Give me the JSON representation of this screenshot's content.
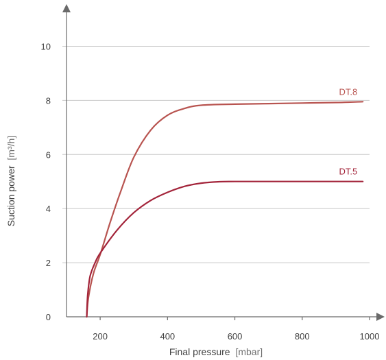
{
  "chart_data": {
    "type": "line",
    "title": "",
    "xlabel": {
      "name": "Final pressure",
      "unit": "[mbar]"
    },
    "ylabel": {
      "name": "Suction power",
      "unit": "[m³/h]"
    },
    "xlim": [
      100,
      1000
    ],
    "ylim": [
      0,
      11
    ],
    "x_ticks": [
      200,
      400,
      600,
      800,
      1000
    ],
    "y_ticks": [
      0,
      2,
      4,
      6,
      8,
      10
    ],
    "grid": "horizontal",
    "series": [
      {
        "name": "DT.8",
        "color": "#b85450",
        "points": [
          [
            160,
            0
          ],
          [
            165,
            0.7
          ],
          [
            180,
            1.6
          ],
          [
            200,
            2.3
          ],
          [
            230,
            3.5
          ],
          [
            260,
            4.6
          ],
          [
            300,
            5.9
          ],
          [
            350,
            6.9
          ],
          [
            400,
            7.45
          ],
          [
            450,
            7.7
          ],
          [
            500,
            7.82
          ],
          [
            600,
            7.86
          ],
          [
            700,
            7.88
          ],
          [
            800,
            7.9
          ],
          [
            900,
            7.92
          ],
          [
            980,
            7.95
          ]
        ]
      },
      {
        "name": "DT.5",
        "color": "#a3243a",
        "points": [
          [
            160,
            0
          ],
          [
            163,
            0.8
          ],
          [
            170,
            1.5
          ],
          [
            185,
            2.0
          ],
          [
            200,
            2.35
          ],
          [
            250,
            3.2
          ],
          [
            300,
            3.85
          ],
          [
            350,
            4.3
          ],
          [
            400,
            4.6
          ],
          [
            450,
            4.82
          ],
          [
            500,
            4.94
          ],
          [
            550,
            4.99
          ],
          [
            600,
            5.0
          ],
          [
            800,
            5.0
          ],
          [
            980,
            5.0
          ]
        ]
      }
    ]
  }
}
